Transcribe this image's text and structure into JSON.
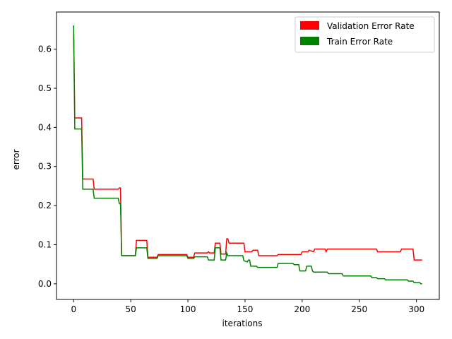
{
  "chart_data": {
    "type": "line",
    "title": "",
    "xlabel": "iterations",
    "ylabel": "error",
    "xlim": [
      -15,
      320
    ],
    "ylim": [
      -0.04,
      0.695
    ],
    "xticks": [
      0,
      50,
      100,
      150,
      200,
      250,
      300
    ],
    "xtick_labels": [
      "0",
      "50",
      "100",
      "150",
      "200",
      "250",
      "300"
    ],
    "yticks": [
      0.0,
      0.1,
      0.2,
      0.3,
      0.4,
      0.5,
      0.6
    ],
    "ytick_labels": [
      "0.0",
      "0.1",
      "0.2",
      "0.3",
      "0.4",
      "0.5",
      "0.6"
    ],
    "grid": false,
    "legend_position": "top-right",
    "series": [
      {
        "name": "Validation Error Rate",
        "color": "#ff0000",
        "points": [
          [
            0,
            0.64
          ],
          [
            1,
            0.424
          ],
          [
            7,
            0.424
          ],
          [
            8,
            0.268
          ],
          [
            17,
            0.268
          ],
          [
            18,
            0.242
          ],
          [
            39,
            0.242
          ],
          [
            40,
            0.245
          ],
          [
            41,
            0.245
          ],
          [
            42,
            0.072
          ],
          [
            54,
            0.072
          ],
          [
            55,
            0.111
          ],
          [
            64,
            0.111
          ],
          [
            65,
            0.068
          ],
          [
            73,
            0.068
          ],
          [
            74,
            0.075
          ],
          [
            99,
            0.075
          ],
          [
            100,
            0.068
          ],
          [
            105,
            0.068
          ],
          [
            106,
            0.079
          ],
          [
            117,
            0.079
          ],
          [
            118,
            0.082
          ],
          [
            119,
            0.079
          ],
          [
            123,
            0.079
          ],
          [
            124,
            0.104
          ],
          [
            128,
            0.104
          ],
          [
            129,
            0.076
          ],
          [
            133,
            0.076
          ],
          [
            134,
            0.115
          ],
          [
            135,
            0.115
          ],
          [
            136,
            0.104
          ],
          [
            149,
            0.104
          ],
          [
            150,
            0.082
          ],
          [
            156,
            0.082
          ],
          [
            157,
            0.086
          ],
          [
            161,
            0.086
          ],
          [
            162,
            0.072
          ],
          [
            178,
            0.072
          ],
          [
            179,
            0.075
          ],
          [
            199,
            0.075
          ],
          [
            200,
            0.082
          ],
          [
            205,
            0.082
          ],
          [
            206,
            0.086
          ],
          [
            210,
            0.082
          ],
          [
            211,
            0.089
          ],
          [
            220,
            0.089
          ],
          [
            221,
            0.082
          ],
          [
            222,
            0.089
          ],
          [
            265,
            0.089
          ],
          [
            266,
            0.082
          ],
          [
            286,
            0.082
          ],
          [
            287,
            0.089
          ],
          [
            297,
            0.089
          ],
          [
            298,
            0.061
          ],
          [
            305,
            0.061
          ]
        ]
      },
      {
        "name": "Train Error Rate",
        "color": "#008000",
        "points": [
          [
            0,
            0.661
          ],
          [
            1,
            0.396
          ],
          [
            7,
            0.396
          ],
          [
            8,
            0.242
          ],
          [
            17,
            0.242
          ],
          [
            18,
            0.219
          ],
          [
            39,
            0.219
          ],
          [
            40,
            0.205
          ],
          [
            41,
            0.205
          ],
          [
            42,
            0.072
          ],
          [
            54,
            0.072
          ],
          [
            55,
            0.092
          ],
          [
            64,
            0.092
          ],
          [
            65,
            0.065
          ],
          [
            73,
            0.065
          ],
          [
            74,
            0.072
          ],
          [
            99,
            0.072
          ],
          [
            100,
            0.065
          ],
          [
            105,
            0.065
          ],
          [
            106,
            0.069
          ],
          [
            117,
            0.069
          ],
          [
            118,
            0.061
          ],
          [
            123,
            0.061
          ],
          [
            124,
            0.092
          ],
          [
            128,
            0.092
          ],
          [
            129,
            0.061
          ],
          [
            133,
            0.061
          ],
          [
            134,
            0.079
          ],
          [
            135,
            0.072
          ],
          [
            148,
            0.072
          ],
          [
            149,
            0.059
          ],
          [
            152,
            0.056
          ],
          [
            153,
            0.061
          ],
          [
            154,
            0.061
          ],
          [
            155,
            0.045
          ],
          [
            160,
            0.045
          ],
          [
            161,
            0.042
          ],
          [
            178,
            0.042
          ],
          [
            179,
            0.052
          ],
          [
            192,
            0.052
          ],
          [
            193,
            0.049
          ],
          [
            197,
            0.049
          ],
          [
            198,
            0.033
          ],
          [
            203,
            0.033
          ],
          [
            204,
            0.045
          ],
          [
            208,
            0.045
          ],
          [
            209,
            0.033
          ],
          [
            210,
            0.03
          ],
          [
            222,
            0.03
          ],
          [
            223,
            0.026
          ],
          [
            235,
            0.026
          ],
          [
            236,
            0.02
          ],
          [
            260,
            0.02
          ],
          [
            261,
            0.016
          ],
          [
            265,
            0.016
          ],
          [
            266,
            0.013
          ],
          [
            272,
            0.013
          ],
          [
            273,
            0.01
          ],
          [
            292,
            0.01
          ],
          [
            293,
            0.007
          ],
          [
            297,
            0.007
          ],
          [
            298,
            0.003
          ],
          [
            303,
            0.003
          ],
          [
            304,
            0.0
          ],
          [
            305,
            0.0
          ]
        ]
      }
    ]
  }
}
